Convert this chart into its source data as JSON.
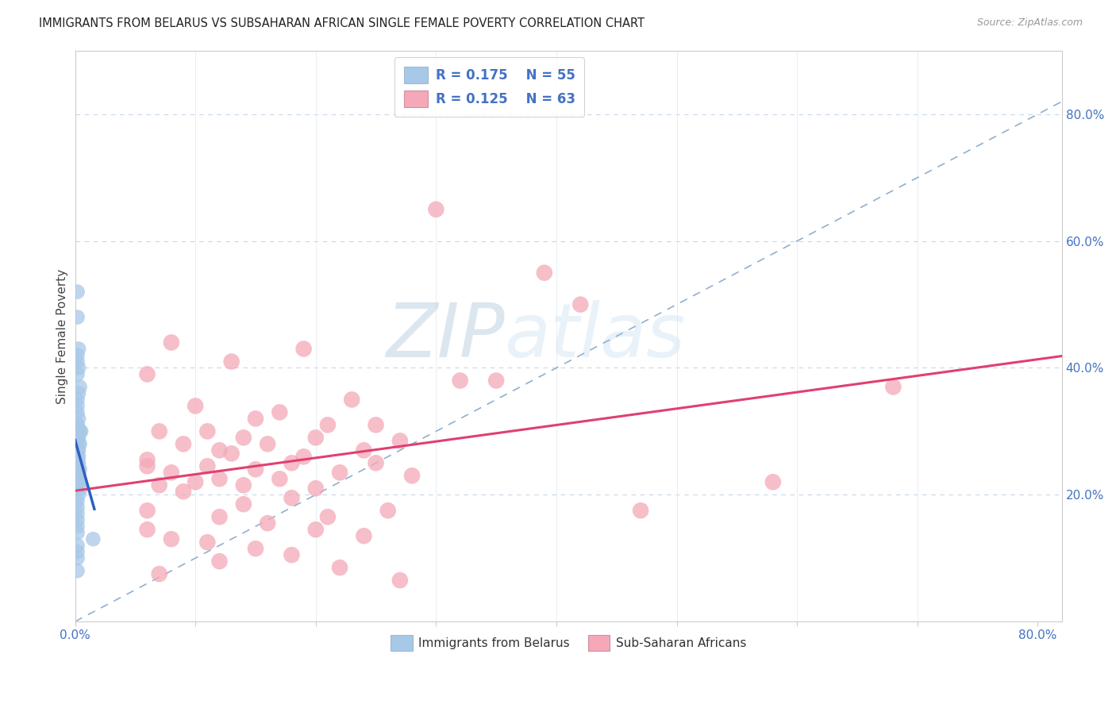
{
  "title": "IMMIGRANTS FROM BELARUS VS SUBSAHARAN AFRICAN SINGLE FEMALE POVERTY CORRELATION CHART",
  "source": "Source: ZipAtlas.com",
  "ylabel": "Single Female Poverty",
  "xlim": [
    0.0,
    0.82
  ],
  "ylim": [
    0.0,
    0.9
  ],
  "color_blue": "#a8c8e8",
  "color_pink": "#f4a8b8",
  "line_blue": "#3060c0",
  "line_pink": "#e04070",
  "diag_color": "#90b0d0",
  "watermark_zip": "ZIP",
  "watermark_atlas": "atlas",
  "legend_r1": "R = 0.175",
  "legend_n1": "N = 55",
  "legend_r2": "R = 0.125",
  "legend_n2": "N = 63",
  "belarus_x": [
    0.002,
    0.002,
    0.003,
    0.002,
    0.002,
    0.003,
    0.002,
    0.004,
    0.003,
    0.002,
    0.002,
    0.002,
    0.003,
    0.002,
    0.002,
    0.004,
    0.003,
    0.005,
    0.004,
    0.003,
    0.002,
    0.002,
    0.003,
    0.004,
    0.003,
    0.002,
    0.002,
    0.002,
    0.003,
    0.002,
    0.002,
    0.002,
    0.003,
    0.002,
    0.004,
    0.003,
    0.003,
    0.002,
    0.004,
    0.002,
    0.002,
    0.002,
    0.005,
    0.003,
    0.002,
    0.002,
    0.002,
    0.002,
    0.002,
    0.002,
    0.015,
    0.002,
    0.002,
    0.002,
    0.002
  ],
  "belarus_y": [
    0.52,
    0.48,
    0.43,
    0.42,
    0.41,
    0.4,
    0.39,
    0.37,
    0.36,
    0.35,
    0.34,
    0.33,
    0.32,
    0.31,
    0.31,
    0.3,
    0.3,
    0.3,
    0.3,
    0.29,
    0.29,
    0.29,
    0.28,
    0.28,
    0.27,
    0.27,
    0.27,
    0.26,
    0.26,
    0.25,
    0.25,
    0.25,
    0.25,
    0.24,
    0.24,
    0.24,
    0.23,
    0.23,
    0.22,
    0.22,
    0.22,
    0.21,
    0.21,
    0.2,
    0.19,
    0.18,
    0.17,
    0.16,
    0.15,
    0.14,
    0.13,
    0.12,
    0.11,
    0.1,
    0.08
  ],
  "subsaharan_x": [
    0.3,
    0.08,
    0.19,
    0.13,
    0.06,
    0.23,
    0.1,
    0.17,
    0.15,
    0.25,
    0.21,
    0.11,
    0.07,
    0.14,
    0.2,
    0.27,
    0.09,
    0.16,
    0.24,
    0.12,
    0.13,
    0.19,
    0.06,
    0.25,
    0.18,
    0.06,
    0.11,
    0.15,
    0.08,
    0.22,
    0.28,
    0.12,
    0.17,
    0.1,
    0.07,
    0.14,
    0.2,
    0.09,
    0.18,
    0.14,
    0.06,
    0.26,
    0.12,
    0.21,
    0.16,
    0.06,
    0.2,
    0.24,
    0.08,
    0.32,
    0.39,
    0.11,
    0.15,
    0.18,
    0.12,
    0.22,
    0.07,
    0.27,
    0.47,
    0.58,
    0.68,
    0.42,
    0.35
  ],
  "subsaharan_y": [
    0.65,
    0.44,
    0.43,
    0.41,
    0.39,
    0.35,
    0.34,
    0.33,
    0.32,
    0.31,
    0.31,
    0.3,
    0.3,
    0.29,
    0.29,
    0.285,
    0.28,
    0.28,
    0.27,
    0.27,
    0.265,
    0.26,
    0.255,
    0.25,
    0.25,
    0.245,
    0.245,
    0.24,
    0.235,
    0.235,
    0.23,
    0.225,
    0.225,
    0.22,
    0.215,
    0.215,
    0.21,
    0.205,
    0.195,
    0.185,
    0.175,
    0.175,
    0.165,
    0.165,
    0.155,
    0.145,
    0.145,
    0.135,
    0.13,
    0.38,
    0.55,
    0.125,
    0.115,
    0.105,
    0.095,
    0.085,
    0.075,
    0.065,
    0.175,
    0.22,
    0.37,
    0.5,
    0.38
  ]
}
